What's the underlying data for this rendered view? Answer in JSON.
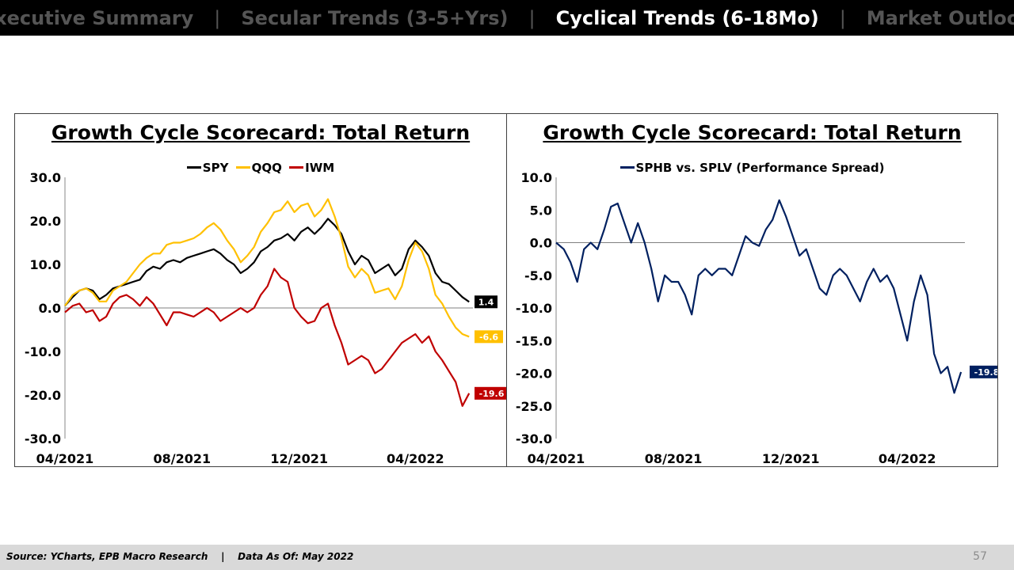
{
  "nav": {
    "tabs": [
      {
        "label": "Executive Summary",
        "active": false
      },
      {
        "label": "Secular Trends (3-5+Yrs)",
        "active": false
      },
      {
        "label": "Cyclical Trends (6-18Mo)",
        "active": true
      },
      {
        "label": "Market Outlook",
        "active": false
      }
    ],
    "separator": "|"
  },
  "chart_data": [
    {
      "type": "line",
      "title": "Growth Cycle Scorecard: Total Return",
      "xlabel": "",
      "ylabel": "",
      "x_ticks": [
        "04/2021",
        "08/2021",
        "12/2021",
        "04/2022"
      ],
      "x_range": [
        "2021-04-01",
        "2022-05-31"
      ],
      "y_ticks": [
        "30.0",
        "20.0",
        "10.0",
        "0.0",
        "-10.0",
        "-20.0",
        "-30.0"
      ],
      "ylim": [
        -30,
        30
      ],
      "grid": false,
      "zero_line": true,
      "legend": "top-center",
      "series": [
        {
          "name": "SPY",
          "color": "#000000",
          "end_label": "1.4",
          "x": [
            "2021-04-01",
            "2021-04-09",
            "2021-04-16",
            "2021-04-23",
            "2021-04-30",
            "2021-05-07",
            "2021-05-14",
            "2021-05-21",
            "2021-05-28",
            "2021-06-04",
            "2021-06-11",
            "2021-06-18",
            "2021-06-25",
            "2021-07-02",
            "2021-07-09",
            "2021-07-16",
            "2021-07-23",
            "2021-07-30",
            "2021-08-06",
            "2021-08-13",
            "2021-08-20",
            "2021-08-27",
            "2021-09-03",
            "2021-09-10",
            "2021-09-17",
            "2021-09-24",
            "2021-10-01",
            "2021-10-08",
            "2021-10-15",
            "2021-10-22",
            "2021-10-29",
            "2021-11-05",
            "2021-11-12",
            "2021-11-19",
            "2021-11-26",
            "2021-12-03",
            "2021-12-10",
            "2021-12-17",
            "2021-12-24",
            "2021-12-31",
            "2022-01-07",
            "2022-01-14",
            "2022-01-21",
            "2022-01-28",
            "2022-02-04",
            "2022-02-11",
            "2022-02-18",
            "2022-02-25",
            "2022-03-04",
            "2022-03-11",
            "2022-03-18",
            "2022-03-25",
            "2022-04-01",
            "2022-04-08",
            "2022-04-15",
            "2022-04-22",
            "2022-04-29",
            "2022-05-06",
            "2022-05-13",
            "2022-05-20",
            "2022-05-27"
          ],
          "y": [
            0.5,
            2.5,
            4.0,
            4.5,
            4.0,
            2.0,
            3.0,
            4.5,
            5.0,
            5.5,
            6.0,
            6.5,
            8.5,
            9.5,
            9.0,
            10.5,
            11.0,
            10.5,
            11.5,
            12.0,
            12.5,
            13.0,
            13.5,
            12.5,
            11.0,
            10.0,
            8.0,
            9.0,
            10.5,
            13.0,
            14.0,
            15.5,
            16.0,
            17.0,
            15.5,
            17.5,
            18.5,
            17.0,
            18.5,
            20.5,
            19.0,
            17.0,
            13.0,
            10.0,
            12.0,
            11.0,
            8.0,
            9.0,
            10.0,
            7.5,
            9.0,
            13.5,
            15.5,
            14.0,
            12.0,
            8.0,
            6.0,
            5.5,
            4.0,
            2.5,
            1.4
          ]
        },
        {
          "name": "QQQ",
          "color": "#ffc000",
          "end_label": "-6.6",
          "x": [
            "2021-04-01",
            "2021-04-09",
            "2021-04-16",
            "2021-04-23",
            "2021-04-30",
            "2021-05-07",
            "2021-05-14",
            "2021-05-21",
            "2021-05-28",
            "2021-06-04",
            "2021-06-11",
            "2021-06-18",
            "2021-06-25",
            "2021-07-02",
            "2021-07-09",
            "2021-07-16",
            "2021-07-23",
            "2021-07-30",
            "2021-08-06",
            "2021-08-13",
            "2021-08-20",
            "2021-08-27",
            "2021-09-03",
            "2021-09-10",
            "2021-09-17",
            "2021-09-24",
            "2021-10-01",
            "2021-10-08",
            "2021-10-15",
            "2021-10-22",
            "2021-10-29",
            "2021-11-05",
            "2021-11-12",
            "2021-11-19",
            "2021-11-26",
            "2021-12-03",
            "2021-12-10",
            "2021-12-17",
            "2021-12-24",
            "2021-12-31",
            "2022-01-07",
            "2022-01-14",
            "2022-01-21",
            "2022-01-28",
            "2022-02-04",
            "2022-02-11",
            "2022-02-18",
            "2022-02-25",
            "2022-03-04",
            "2022-03-11",
            "2022-03-18",
            "2022-03-25",
            "2022-04-01",
            "2022-04-08",
            "2022-04-15",
            "2022-04-22",
            "2022-04-29",
            "2022-05-06",
            "2022-05-13",
            "2022-05-20",
            "2022-05-27"
          ],
          "y": [
            0.5,
            3.0,
            4.0,
            4.5,
            3.5,
            1.5,
            1.5,
            4.0,
            5.0,
            6.0,
            8.0,
            10.0,
            11.5,
            12.5,
            12.5,
            14.5,
            15.0,
            15.0,
            15.5,
            16.0,
            17.0,
            18.5,
            19.5,
            18.0,
            15.5,
            13.5,
            10.5,
            12.0,
            14.0,
            17.5,
            19.5,
            22.0,
            22.5,
            24.5,
            22.0,
            23.5,
            24.0,
            21.0,
            22.5,
            25.0,
            21.0,
            16.0,
            9.5,
            7.0,
            9.0,
            7.5,
            3.5,
            4.0,
            4.5,
            2.0,
            5.0,
            11.0,
            15.0,
            13.0,
            9.0,
            3.0,
            1.0,
            -2.0,
            -4.5,
            -6.0,
            -6.6
          ]
        },
        {
          "name": "IWM",
          "color": "#c00000",
          "end_label": "-19.6",
          "x": [
            "2021-04-01",
            "2021-04-09",
            "2021-04-16",
            "2021-04-23",
            "2021-04-30",
            "2021-05-07",
            "2021-05-14",
            "2021-05-21",
            "2021-05-28",
            "2021-06-04",
            "2021-06-11",
            "2021-06-18",
            "2021-06-25",
            "2021-07-02",
            "2021-07-09",
            "2021-07-16",
            "2021-07-23",
            "2021-07-30",
            "2021-08-06",
            "2021-08-13",
            "2021-08-20",
            "2021-08-27",
            "2021-09-03",
            "2021-09-10",
            "2021-09-17",
            "2021-09-24",
            "2021-10-01",
            "2021-10-08",
            "2021-10-15",
            "2021-10-22",
            "2021-10-29",
            "2021-11-05",
            "2021-11-12",
            "2021-11-19",
            "2021-11-26",
            "2021-12-03",
            "2021-12-10",
            "2021-12-17",
            "2021-12-24",
            "2021-12-31",
            "2022-01-07",
            "2022-01-14",
            "2022-01-21",
            "2022-01-28",
            "2022-02-04",
            "2022-02-11",
            "2022-02-18",
            "2022-02-25",
            "2022-03-04",
            "2022-03-11",
            "2022-03-18",
            "2022-03-25",
            "2022-04-01",
            "2022-04-08",
            "2022-04-15",
            "2022-04-22",
            "2022-04-29",
            "2022-05-06",
            "2022-05-13",
            "2022-05-20",
            "2022-05-27"
          ],
          "y": [
            -1.0,
            0.5,
            1.0,
            -1.0,
            -0.5,
            -3.0,
            -2.0,
            1.0,
            2.5,
            3.0,
            2.0,
            0.5,
            2.5,
            1.0,
            -1.5,
            -4.0,
            -1.0,
            -1.0,
            -1.5,
            -2.0,
            -1.0,
            0.0,
            -1.0,
            -3.0,
            -2.0,
            -1.0,
            0.0,
            -1.0,
            0.0,
            3.0,
            5.0,
            9.0,
            7.0,
            6.0,
            0.0,
            -2.0,
            -3.5,
            -3.0,
            0.0,
            1.0,
            -4.0,
            -8.0,
            -13.0,
            -12.0,
            -11.0,
            -12.0,
            -15.0,
            -14.0,
            -12.0,
            -10.0,
            -8.0,
            -7.0,
            -6.0,
            -8.0,
            -6.5,
            -10.0,
            -12.0,
            -14.5,
            -17.0,
            -22.5,
            -19.6
          ]
        }
      ]
    },
    {
      "type": "line",
      "title": "Growth Cycle Scorecard: Total Return",
      "xlabel": "",
      "ylabel": "",
      "x_ticks": [
        "04/2021",
        "08/2021",
        "12/2021",
        "04/2022"
      ],
      "x_range": [
        "2021-04-01",
        "2022-05-31"
      ],
      "y_ticks": [
        "10.0",
        "5.0",
        "0.0",
        "-5.0",
        "-10.0",
        "-15.0",
        "-20.0",
        "-25.0",
        "-30.0"
      ],
      "ylim": [
        -30,
        10
      ],
      "grid": false,
      "zero_line": true,
      "legend": "top-center",
      "series": [
        {
          "name": "SPHB vs. SPLV (Performance Spread)",
          "color": "#002060",
          "end_label": "-19.8",
          "x": [
            "2021-04-01",
            "2021-04-09",
            "2021-04-16",
            "2021-04-23",
            "2021-04-30",
            "2021-05-07",
            "2021-05-14",
            "2021-05-21",
            "2021-05-28",
            "2021-06-04",
            "2021-06-11",
            "2021-06-18",
            "2021-06-25",
            "2021-07-02",
            "2021-07-09",
            "2021-07-16",
            "2021-07-23",
            "2021-07-30",
            "2021-08-06",
            "2021-08-13",
            "2021-08-20",
            "2021-08-27",
            "2021-09-03",
            "2021-09-10",
            "2021-09-17",
            "2021-09-24",
            "2021-10-01",
            "2021-10-08",
            "2021-10-15",
            "2021-10-22",
            "2021-10-29",
            "2021-11-05",
            "2021-11-12",
            "2021-11-19",
            "2021-11-26",
            "2021-12-03",
            "2021-12-10",
            "2021-12-17",
            "2021-12-24",
            "2021-12-31",
            "2022-01-07",
            "2022-01-14",
            "2022-01-21",
            "2022-01-28",
            "2022-02-04",
            "2022-02-11",
            "2022-02-18",
            "2022-02-25",
            "2022-03-04",
            "2022-03-11",
            "2022-03-18",
            "2022-03-25",
            "2022-04-01",
            "2022-04-08",
            "2022-04-15",
            "2022-04-22",
            "2022-04-29",
            "2022-05-06",
            "2022-05-13",
            "2022-05-20",
            "2022-05-27"
          ],
          "y": [
            0.0,
            -1.0,
            -3.0,
            -6.0,
            -1.0,
            0.0,
            -1.0,
            2.0,
            5.5,
            6.0,
            3.0,
            0.0,
            3.0,
            0.0,
            -4.0,
            -9.0,
            -5.0,
            -6.0,
            -6.0,
            -8.0,
            -11.0,
            -5.0,
            -4.0,
            -5.0,
            -4.0,
            -4.0,
            -5.0,
            -2.0,
            1.0,
            0.0,
            -0.5,
            2.0,
            3.5,
            6.5,
            4.0,
            1.0,
            -2.0,
            -1.0,
            -4.0,
            -7.0,
            -8.0,
            -5.0,
            -4.0,
            -5.0,
            -7.0,
            -9.0,
            -6.0,
            -4.0,
            -6.0,
            -5.0,
            -7.0,
            -11.0,
            -15.0,
            -9.0,
            -5.0,
            -8.0,
            -17.0,
            -20.0,
            -19.0,
            -23.0,
            -19.8
          ]
        }
      ]
    }
  ],
  "footer": {
    "source": "Source: YCharts, EPB Macro Research    |    Data As Of: May 2022",
    "page_number": "57"
  }
}
